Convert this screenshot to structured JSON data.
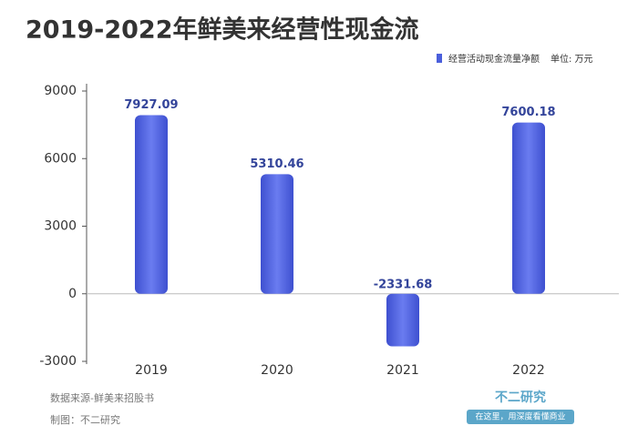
{
  "chart_data": {
    "type": "bar",
    "title": "2019-2022年鲜美来经营性现金流",
    "unit": "单位: 万元",
    "categories": [
      "2019",
      "2020",
      "2021",
      "2022"
    ],
    "series": [
      {
        "name": "经营活动现金流量净额",
        "color": "#4b5fdc",
        "values": [
          7927.09,
          5310.46,
          -2331.68,
          7600.18
        ]
      }
    ],
    "ylim": [
      -3000,
      9000
    ],
    "yticks": [
      -3000,
      0,
      3000,
      6000,
      9000
    ],
    "source": "数据来源-鲜美来招股书",
    "credit": "制图：不二研究",
    "brand": "不二研究",
    "slogan": "在这里，用深度看懂商业"
  }
}
